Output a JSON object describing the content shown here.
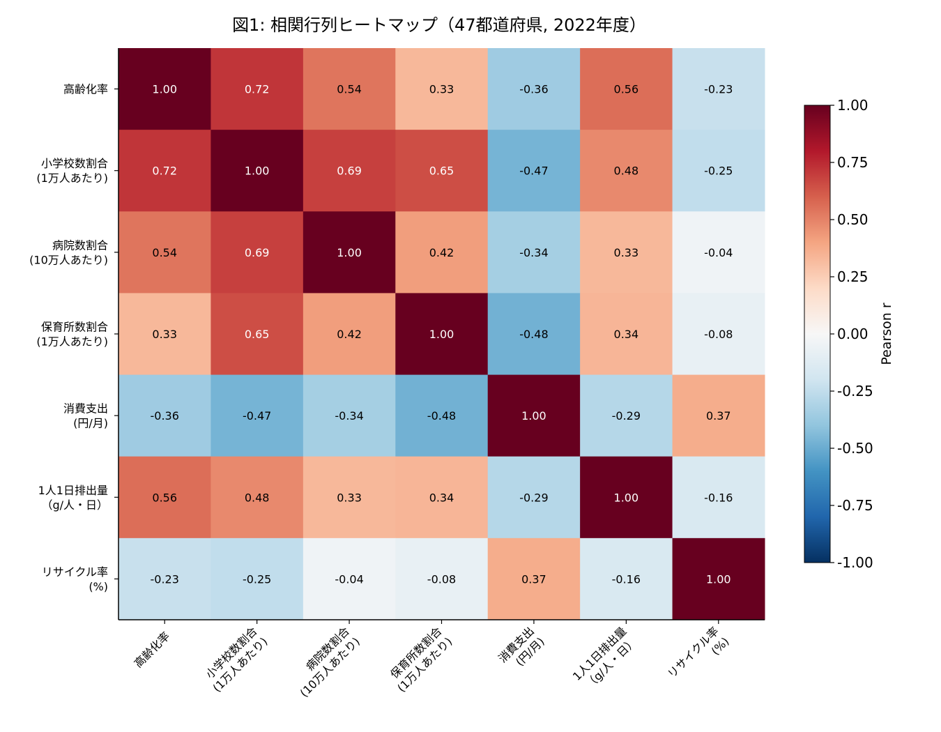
{
  "chart_data": {
    "type": "heatmap",
    "title": "図1: 相関行列ヒートマップ（47都道府県, 2022年度）",
    "row_labels": [
      [
        "高齢化率"
      ],
      [
        "小学校数割合",
        "(1万人あたり)"
      ],
      [
        "病院数割合",
        "(10万人あたり)"
      ],
      [
        "保育所数割合",
        "(1万人あたり)"
      ],
      [
        "消費支出",
        "(円/月)"
      ],
      [
        "1人1日排出量",
        "（g/人・日）"
      ],
      [
        "リサイクル率",
        "(%)"
      ]
    ],
    "col_labels": [
      [
        "高齢化率"
      ],
      [
        "小学校数割合",
        "(1万人あたり)"
      ],
      [
        "病院数割合",
        "(10万人あたり)"
      ],
      [
        "保育所数割合",
        "(1万人あたり)"
      ],
      [
        "消費支出",
        "(円/月)"
      ],
      [
        "1人1日排出量",
        "（g/人・日）"
      ],
      [
        "リサイクル率",
        "(%)"
      ]
    ],
    "values": [
      [
        1.0,
        0.72,
        0.54,
        0.33,
        -0.36,
        0.56,
        -0.23
      ],
      [
        0.72,
        1.0,
        0.69,
        0.65,
        -0.47,
        0.48,
        -0.25
      ],
      [
        0.54,
        0.69,
        1.0,
        0.42,
        -0.34,
        0.33,
        -0.04
      ],
      [
        0.33,
        0.65,
        0.42,
        1.0,
        -0.48,
        0.34,
        -0.08
      ],
      [
        -0.36,
        -0.47,
        -0.34,
        -0.48,
        1.0,
        -0.29,
        0.37
      ],
      [
        0.56,
        0.48,
        0.33,
        0.34,
        -0.29,
        1.0,
        -0.16
      ],
      [
        -0.23,
        -0.25,
        -0.04,
        -0.08,
        0.37,
        -0.16,
        1.0
      ]
    ],
    "colorbar": {
      "label": "Pearson r",
      "range": [
        -1.0,
        1.0
      ],
      "ticks": [
        "1.00",
        "0.75",
        "0.50",
        "0.25",
        "0.00",
        "-0.25",
        "-0.50",
        "-0.75",
        "-1.00"
      ],
      "colormap": "RdBu_r"
    }
  }
}
